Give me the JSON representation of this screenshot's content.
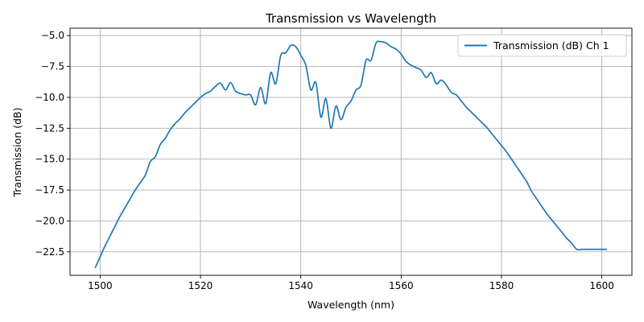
{
  "chart_data": {
    "type": "line",
    "title": "Transmission vs Wavelength",
    "xlabel": "Wavelength (nm)",
    "ylabel": "Transmission (dB)",
    "xlim": [
      1494,
      1606
    ],
    "ylim": [
      -24.4,
      -4.4
    ],
    "xticks": [
      1500,
      1520,
      1540,
      1560,
      1580,
      1600
    ],
    "xtick_labels": [
      "1500",
      "1520",
      "1540",
      "1560",
      "1580",
      "1600"
    ],
    "yticks": [
      -22.5,
      -20.0,
      -17.5,
      -15.0,
      -12.5,
      -10.0,
      -7.5,
      -5.0
    ],
    "ytick_labels": [
      "−22.5",
      "−20.0",
      "−17.5",
      "−15.0",
      "−12.5",
      "−10.0",
      "−7.5",
      "−5.0"
    ],
    "grid": true,
    "legend_position": "top-right",
    "series": [
      {
        "name": "Transmission (dB) Ch 1",
        "color": "#1f77b4",
        "x": [
          1499,
          1500,
          1501,
          1502,
          1503,
          1504,
          1505,
          1506,
          1507,
          1508,
          1509,
          1510,
          1511,
          1512,
          1513,
          1514,
          1515,
          1516,
          1517,
          1518,
          1519,
          1520,
          1521,
          1522,
          1523,
          1524,
          1525,
          1526,
          1527,
          1528,
          1529,
          1530,
          1531,
          1532,
          1533,
          1534,
          1535,
          1536,
          1537,
          1538,
          1539,
          1540,
          1541,
          1542,
          1543,
          1544,
          1545,
          1546,
          1547,
          1548,
          1549,
          1550,
          1551,
          1552,
          1553,
          1554,
          1555,
          1556,
          1557,
          1558,
          1559,
          1560,
          1561,
          1562,
          1563,
          1564,
          1565,
          1566,
          1567,
          1568,
          1569,
          1570,
          1571,
          1572,
          1573,
          1574,
          1575,
          1576,
          1577,
          1578,
          1579,
          1580,
          1581,
          1582,
          1583,
          1584,
          1585,
          1586,
          1587,
          1588,
          1589,
          1590,
          1591,
          1592,
          1593,
          1594,
          1595,
          1596,
          1597,
          1598,
          1599,
          1600,
          1601
        ],
        "y": [
          -23.8,
          -22.9,
          -22.0,
          -21.2,
          -20.4,
          -19.6,
          -18.9,
          -18.2,
          -17.5,
          -16.9,
          -16.3,
          -15.2,
          -14.8,
          -13.8,
          -13.3,
          -12.6,
          -12.1,
          -11.7,
          -11.2,
          -10.8,
          -10.4,
          -10.0,
          -9.7,
          -9.5,
          -9.1,
          -8.85,
          -9.4,
          -8.8,
          -9.5,
          -9.7,
          -9.8,
          -9.8,
          -10.6,
          -9.2,
          -10.5,
          -8.0,
          -8.9,
          -6.6,
          -6.4,
          -5.8,
          -5.9,
          -6.6,
          -7.4,
          -9.4,
          -8.8,
          -11.6,
          -10.1,
          -12.5,
          -10.7,
          -11.8,
          -10.8,
          -10.3,
          -9.4,
          -9.0,
          -7.0,
          -7.0,
          -5.6,
          -5.5,
          -5.6,
          -5.9,
          -6.1,
          -6.5,
          -7.1,
          -7.4,
          -7.6,
          -7.8,
          -8.4,
          -8.0,
          -8.9,
          -8.6,
          -9.0,
          -9.6,
          -9.8,
          -10.3,
          -10.8,
          -11.2,
          -11.6,
          -12.0,
          -12.4,
          -12.9,
          -13.4,
          -13.9,
          -14.4,
          -15.0,
          -15.6,
          -16.2,
          -16.8,
          -17.6,
          -18.2,
          -18.8,
          -19.4,
          -19.9,
          -20.4,
          -20.9,
          -21.4,
          -21.8,
          -22.3,
          -22.3,
          -22.3,
          -22.3,
          -22.3,
          -22.3,
          -22.3
        ]
      }
    ]
  }
}
